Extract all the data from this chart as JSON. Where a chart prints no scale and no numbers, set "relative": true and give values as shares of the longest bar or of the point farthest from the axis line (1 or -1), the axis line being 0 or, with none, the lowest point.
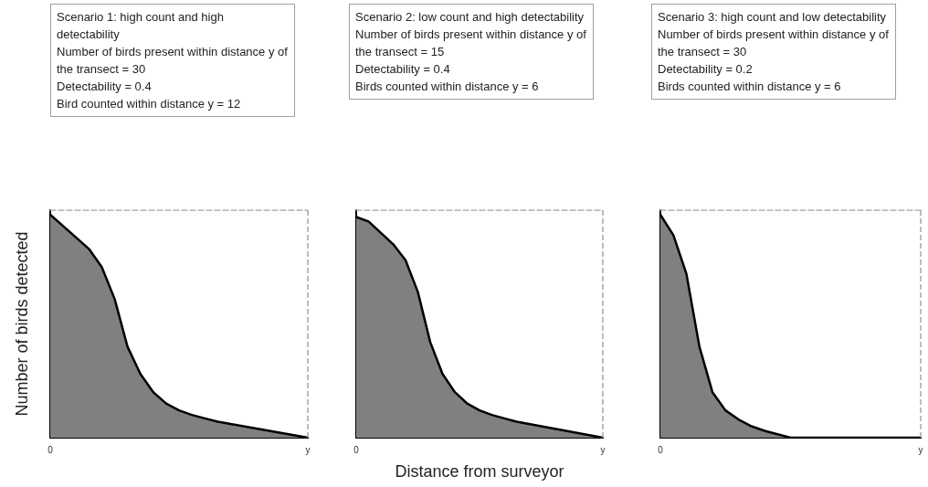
{
  "chart_data": [
    {
      "type": "area",
      "title": "Scenario 1: high count and high detectability",
      "annotations": [
        "Number of birds present within distance y of the transect = 30",
        "Detectability = 0.4",
        "Bird counted within distance y = 12"
      ],
      "ylabel": "Number of birds detected",
      "relative": true,
      "marker": "none",
      "ref_lines": [
        {
          "axis": "x",
          "value": "y",
          "line_style": "dashed",
          "color": "#a6a6a6"
        }
      ],
      "categories": [
        "0",
        null,
        null,
        null,
        null,
        null,
        null,
        null,
        null,
        null,
        null,
        null,
        null,
        null,
        null,
        null,
        null,
        null,
        null,
        null,
        "y"
      ],
      "series": [
        {
          "type": "line",
          "line_style": "dashed",
          "color": "#a6a6a6",
          "values": [
            1,
            1,
            1,
            1,
            1,
            1,
            1,
            1,
            1,
            1,
            1,
            1,
            1,
            1,
            1,
            1,
            1,
            1,
            1,
            1,
            1
          ]
        },
        {
          "color": "#808080",
          "values": [
            0.98,
            0.93,
            0.88,
            0.83,
            0.75,
            0.61,
            0.4,
            0.28,
            0.2,
            0.15,
            0.12,
            0.1,
            0.085,
            0.07,
            0.06,
            0.05,
            0.04,
            0.03,
            0.02,
            0.01,
            0
          ]
        }
      ]
    },
    {
      "type": "area",
      "title": "Scenario 2: low count and high detectability",
      "annotations": [
        "Number of birds present within distance y of the transect = 15",
        "Detectability = 0.4",
        "Birds counted within distance y = 6"
      ],
      "xlabel": "Distance from surveyor",
      "relative": true,
      "marker": "none",
      "ref_lines": [
        {
          "axis": "x",
          "value": "y",
          "line_style": "dashed",
          "color": "#a6a6a6"
        }
      ],
      "categories": [
        "0",
        null,
        null,
        null,
        null,
        null,
        null,
        null,
        null,
        null,
        null,
        null,
        null,
        null,
        null,
        null,
        null,
        null,
        null,
        null,
        "y"
      ],
      "series": [
        {
          "type": "line",
          "line_style": "dashed",
          "color": "#a6a6a6",
          "values": [
            1,
            1,
            1,
            1,
            1,
            1,
            1,
            1,
            1,
            1,
            1,
            1,
            1,
            1,
            1,
            1,
            1,
            1,
            1,
            1,
            1
          ]
        },
        {
          "color": "#808080",
          "values": [
            0.97,
            0.95,
            0.9,
            0.85,
            0.78,
            0.64,
            0.42,
            0.28,
            0.2,
            0.15,
            0.12,
            0.1,
            0.085,
            0.07,
            0.06,
            0.05,
            0.04,
            0.03,
            0.02,
            0.01,
            0
          ]
        }
      ]
    },
    {
      "type": "area",
      "title": "Scenario 3: high count and low detectability",
      "annotations": [
        "Number of birds present within distance y of the transect = 30",
        "Detectability = 0.2",
        "Birds counted within distance y = 6"
      ],
      "relative": true,
      "marker": "none",
      "ref_lines": [
        {
          "axis": "x",
          "value": "y",
          "line_style": "dashed",
          "color": "#a6a6a6"
        }
      ],
      "categories": [
        "0",
        null,
        null,
        null,
        null,
        null,
        null,
        null,
        null,
        null,
        null,
        null,
        null,
        null,
        null,
        null,
        null,
        null,
        null,
        null,
        "y"
      ],
      "series": [
        {
          "type": "line",
          "line_style": "dashed",
          "color": "#a6a6a6",
          "values": [
            1,
            1,
            1,
            1,
            1,
            1,
            1,
            1,
            1,
            1,
            1,
            1,
            1,
            1,
            1,
            1,
            1,
            1,
            1,
            1,
            1
          ]
        },
        {
          "color": "#808080",
          "values": [
            0.98,
            0.89,
            0.72,
            0.4,
            0.2,
            0.12,
            0.08,
            0.05,
            0.03,
            0.015,
            0,
            0,
            0,
            0,
            0,
            0,
            0,
            0,
            0,
            0,
            0
          ]
        }
      ]
    }
  ]
}
